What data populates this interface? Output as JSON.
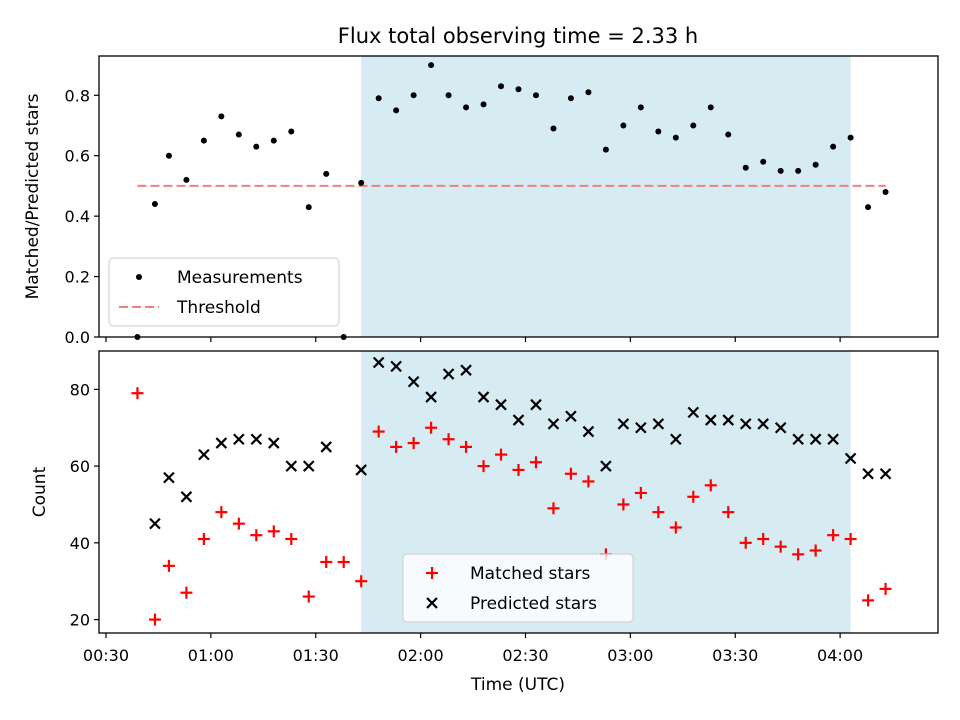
{
  "chart_data": [
    {
      "type": "scatter",
      "title": "Flux total observing time = 2.33 h",
      "xlabel": "",
      "ylabel": "Matched/Predicted stars",
      "xlim": [
        "00:28",
        "04:28"
      ],
      "ylim": [
        0,
        0.93
      ],
      "yticks": [
        "0.0",
        "0.2",
        "0.4",
        "0.6",
        "0.8"
      ],
      "highlight_span": {
        "start": "01:43",
        "end": "04:03",
        "color": "#add8e6"
      },
      "threshold": {
        "value": 0.5,
        "from": "00:39",
        "to": "04:13",
        "color": "#f08080",
        "style": "dashed"
      },
      "legend": {
        "position": "lower-left",
        "entries": [
          "Measurements",
          "Threshold"
        ]
      },
      "series": [
        {
          "name": "Measurements",
          "marker": "dot",
          "color": "#000000",
          "points": [
            [
              "00:39",
              0.0
            ],
            [
              "00:44",
              0.44
            ],
            [
              "00:48",
              0.6
            ],
            [
              "00:53",
              0.52
            ],
            [
              "00:58",
              0.65
            ],
            [
              "01:03",
              0.73
            ],
            [
              "01:08",
              0.67
            ],
            [
              "01:13",
              0.63
            ],
            [
              "01:18",
              0.65
            ],
            [
              "01:23",
              0.68
            ],
            [
              "01:28",
              0.43
            ],
            [
              "01:33",
              0.54
            ],
            [
              "01:38",
              0.0
            ],
            [
              "01:43",
              0.51
            ],
            [
              "01:48",
              0.79
            ],
            [
              "01:53",
              0.75
            ],
            [
              "01:58",
              0.8
            ],
            [
              "02:03",
              0.9
            ],
            [
              "02:08",
              0.8
            ],
            [
              "02:13",
              0.76
            ],
            [
              "02:18",
              0.77
            ],
            [
              "02:23",
              0.83
            ],
            [
              "02:28",
              0.82
            ],
            [
              "02:33",
              0.8
            ],
            [
              "02:38",
              0.69
            ],
            [
              "02:43",
              0.79
            ],
            [
              "02:48",
              0.81
            ],
            [
              "02:53",
              0.62
            ],
            [
              "02:58",
              0.7
            ],
            [
              "03:03",
              0.76
            ],
            [
              "03:08",
              0.68
            ],
            [
              "03:13",
              0.66
            ],
            [
              "03:18",
              0.7
            ],
            [
              "03:23",
              0.76
            ],
            [
              "03:28",
              0.67
            ],
            [
              "03:33",
              0.56
            ],
            [
              "03:38",
              0.58
            ],
            [
              "03:43",
              0.55
            ],
            [
              "03:48",
              0.55
            ],
            [
              "03:53",
              0.57
            ],
            [
              "03:58",
              0.63
            ],
            [
              "04:03",
              0.66
            ],
            [
              "04:08",
              0.43
            ],
            [
              "04:13",
              0.48
            ]
          ]
        },
        {
          "name": "Threshold",
          "marker": "dashed-line",
          "color": "#f08080"
        }
      ]
    },
    {
      "type": "scatter",
      "title": "",
      "xlabel": "Time (UTC)",
      "ylabel": "Count",
      "xlim": [
        "00:28",
        "04:28"
      ],
      "ylim": [
        16.5,
        90
      ],
      "yticks": [
        "20",
        "40",
        "60",
        "80"
      ],
      "xticks": [
        "00:30",
        "01:00",
        "01:30",
        "02:00",
        "02:30",
        "03:00",
        "03:30",
        "04:00"
      ],
      "highlight_span": {
        "start": "01:43",
        "end": "04:03",
        "color": "#add8e6"
      },
      "legend": {
        "position": "lower-center",
        "entries": [
          "Matched stars",
          "Predicted stars"
        ]
      },
      "series": [
        {
          "name": "Matched stars",
          "marker": "plus",
          "color": "#ff0000",
          "points": [
            [
              "00:39",
              79
            ],
            [
              "00:44",
              20
            ],
            [
              "00:48",
              34
            ],
            [
              "00:53",
              27
            ],
            [
              "00:58",
              41
            ],
            [
              "01:03",
              48
            ],
            [
              "01:08",
              45
            ],
            [
              "01:13",
              42
            ],
            [
              "01:18",
              43
            ],
            [
              "01:23",
              41
            ],
            [
              "01:28",
              26
            ],
            [
              "01:33",
              35
            ],
            [
              "01:38",
              35
            ],
            [
              "01:43",
              30
            ],
            [
              "01:48",
              69
            ],
            [
              "01:53",
              65
            ],
            [
              "01:58",
              66
            ],
            [
              "02:03",
              70
            ],
            [
              "02:08",
              67
            ],
            [
              "02:13",
              65
            ],
            [
              "02:18",
              60
            ],
            [
              "02:23",
              63
            ],
            [
              "02:28",
              59
            ],
            [
              "02:33",
              61
            ],
            [
              "02:38",
              49
            ],
            [
              "02:43",
              58
            ],
            [
              "02:48",
              56
            ],
            [
              "02:53",
              37
            ],
            [
              "02:58",
              50
            ],
            [
              "03:03",
              53
            ],
            [
              "03:08",
              48
            ],
            [
              "03:13",
              44
            ],
            [
              "03:18",
              52
            ],
            [
              "03:23",
              55
            ],
            [
              "03:28",
              48
            ],
            [
              "03:33",
              40
            ],
            [
              "03:38",
              41
            ],
            [
              "03:43",
              39
            ],
            [
              "03:48",
              37
            ],
            [
              "03:53",
              38
            ],
            [
              "03:58",
              42
            ],
            [
              "04:03",
              41
            ],
            [
              "04:08",
              25
            ],
            [
              "04:13",
              28
            ]
          ]
        },
        {
          "name": "Predicted stars",
          "marker": "x",
          "color": "#000000",
          "points": [
            [
              "00:44",
              45
            ],
            [
              "00:48",
              57
            ],
            [
              "00:53",
              52
            ],
            [
              "00:58",
              63
            ],
            [
              "01:03",
              66
            ],
            [
              "01:08",
              67
            ],
            [
              "01:13",
              67
            ],
            [
              "01:18",
              66
            ],
            [
              "01:23",
              60
            ],
            [
              "01:28",
              60
            ],
            [
              "01:33",
              65
            ],
            [
              "01:43",
              59
            ],
            [
              "01:48",
              87
            ],
            [
              "01:53",
              86
            ],
            [
              "01:58",
              82
            ],
            [
              "02:03",
              78
            ],
            [
              "02:08",
              84
            ],
            [
              "02:13",
              85
            ],
            [
              "02:18",
              78
            ],
            [
              "02:23",
              76
            ],
            [
              "02:28",
              72
            ],
            [
              "02:33",
              76
            ],
            [
              "02:38",
              71
            ],
            [
              "02:43",
              73
            ],
            [
              "02:48",
              69
            ],
            [
              "02:53",
              60
            ],
            [
              "02:58",
              71
            ],
            [
              "03:03",
              70
            ],
            [
              "03:08",
              71
            ],
            [
              "03:13",
              67
            ],
            [
              "03:18",
              74
            ],
            [
              "03:23",
              72
            ],
            [
              "03:28",
              72
            ],
            [
              "03:33",
              71
            ],
            [
              "03:38",
              71
            ],
            [
              "03:43",
              70
            ],
            [
              "03:48",
              67
            ],
            [
              "03:53",
              67
            ],
            [
              "03:58",
              67
            ],
            [
              "04:03",
              62
            ],
            [
              "04:08",
              58
            ],
            [
              "04:13",
              58
            ]
          ]
        }
      ]
    }
  ]
}
